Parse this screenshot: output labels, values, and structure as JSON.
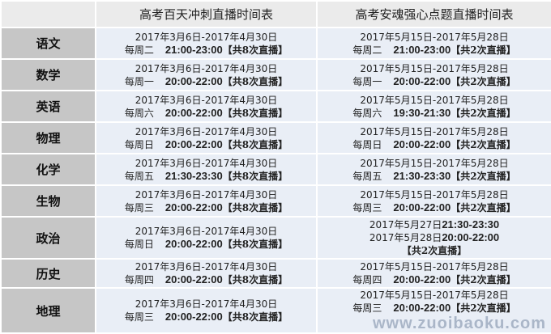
{
  "header": {
    "corner": "",
    "col1": "高考百天冲刺直播时间表",
    "col2": "高考安魂强心点题直播时间表"
  },
  "rows": [
    {
      "subject": "语文",
      "c1": {
        "lines": [
          {
            "text": "2017年3月6日-2017年4月30日"
          },
          {
            "wd": "每周二",
            "tm": "21:00-23:00",
            "ct": "【共8次直播】"
          }
        ]
      },
      "c2": {
        "lines": [
          {
            "text": "2017年5月15日-2017年5月28日"
          },
          {
            "wd": "每周二",
            "tm": "21:00-23:00",
            "ct": "【共2次直播】"
          }
        ]
      }
    },
    {
      "subject": "数学",
      "c1": {
        "lines": [
          {
            "text": "2017年3月6日-2017年4月30日"
          },
          {
            "wd": "每周一",
            "tm": "20:00-22:00",
            "ct": "【共8次直播】"
          }
        ]
      },
      "c2": {
        "lines": [
          {
            "text": "2017年5月15日-2017年5月28日"
          },
          {
            "wd": "每周一",
            "tm": "20:00-22:00",
            "ct": "【共2次直播】"
          }
        ]
      }
    },
    {
      "subject": "英语",
      "c1": {
        "lines": [
          {
            "text": "2017年3月6日-2017年4月30日"
          },
          {
            "wd": "每周六",
            "tm": "20:00-22:00",
            "ct": "【共8次直播】"
          }
        ]
      },
      "c2": {
        "lines": [
          {
            "text": "2017年5月15日-2017年5月28日"
          },
          {
            "wd": "每周六",
            "tm": "19:30-21:30",
            "ct": "【共2次直播】"
          }
        ]
      }
    },
    {
      "subject": "物理",
      "c1": {
        "lines": [
          {
            "text": "2017年3月6日-2017年4月30日"
          },
          {
            "wd": "每周日",
            "tm": "20:00-22:00",
            "ct": "【共8次直播】"
          }
        ]
      },
      "c2": {
        "lines": [
          {
            "text": "2017年5月15日-2017年5月28日"
          },
          {
            "wd": "每周日",
            "tm": "20:00-22:00",
            "ct": "【共2次直播】"
          }
        ]
      }
    },
    {
      "subject": "化学",
      "c1": {
        "lines": [
          {
            "text": "2017年3月6日-2017年4月30日"
          },
          {
            "wd": "每周五",
            "tm": "21:30-23:30",
            "ct": "【共8次直播】"
          }
        ]
      },
      "c2": {
        "lines": [
          {
            "text": "2017年5月15日-2017年5月28日"
          },
          {
            "wd": "每周五",
            "tm": "21:30-23:30",
            "ct": "【共2次直播】"
          }
        ]
      }
    },
    {
      "subject": "生物",
      "c1": {
        "lines": [
          {
            "text": "2017年3月6日-2017年4月30日"
          },
          {
            "wd": "每周三",
            "tm": "20:00-22:00",
            "ct": "【共8次直播】"
          }
        ]
      },
      "c2": {
        "lines": [
          {
            "text": "2017年5月15日-2017年5月28日"
          },
          {
            "wd": "每周三",
            "tm": "20:00-22:00",
            "ct": "【共2次直播】"
          }
        ]
      }
    },
    {
      "subject": "政治",
      "c1": {
        "lines": [
          {
            "text": "2017年3月6日-2017年4月30日"
          },
          {
            "wd": "每周日",
            "tm": "20:00-22:00",
            "ct": "【共8次直播】"
          }
        ]
      },
      "c2": {
        "lines": [
          {
            "text": "2017年5月27日",
            "tm": "21:30-23:30"
          },
          {
            "text": "2017年5月28日",
            "tm": "20:00-22:00"
          },
          {
            "ct": "【共2次直播】"
          }
        ]
      }
    },
    {
      "subject": "历史",
      "c1": {
        "lines": [
          {
            "text": "2017年3月6日-2017年4月30日"
          },
          {
            "wd": "每周四",
            "tm": "20:00-22:00",
            "ct": "【共8次直播】"
          }
        ]
      },
      "c2": {
        "lines": [
          {
            "text": "2017年5月15日-2017年5月28日"
          },
          {
            "wd": "每周四",
            "tm": "20:00-22:00",
            "ct": "【共2次直播】"
          }
        ]
      }
    },
    {
      "subject": "地理",
      "c1": {
        "lines": [
          {
            "text": "2017年3月6日-2017年4月30日"
          },
          {
            "wd": "每周三",
            "tm": "20:00-22:00",
            "ct": "【共8次直播】"
          }
        ]
      },
      "c2": {
        "lines": [
          {
            "text": "2017年5月15日-2017年5月28日"
          },
          {
            "wd": "每周三",
            "tm": "20:00-22:00",
            "ct": "【共2次直播】"
          }
        ]
      }
    }
  ],
  "watermark": "www.zuoibaoku.com"
}
